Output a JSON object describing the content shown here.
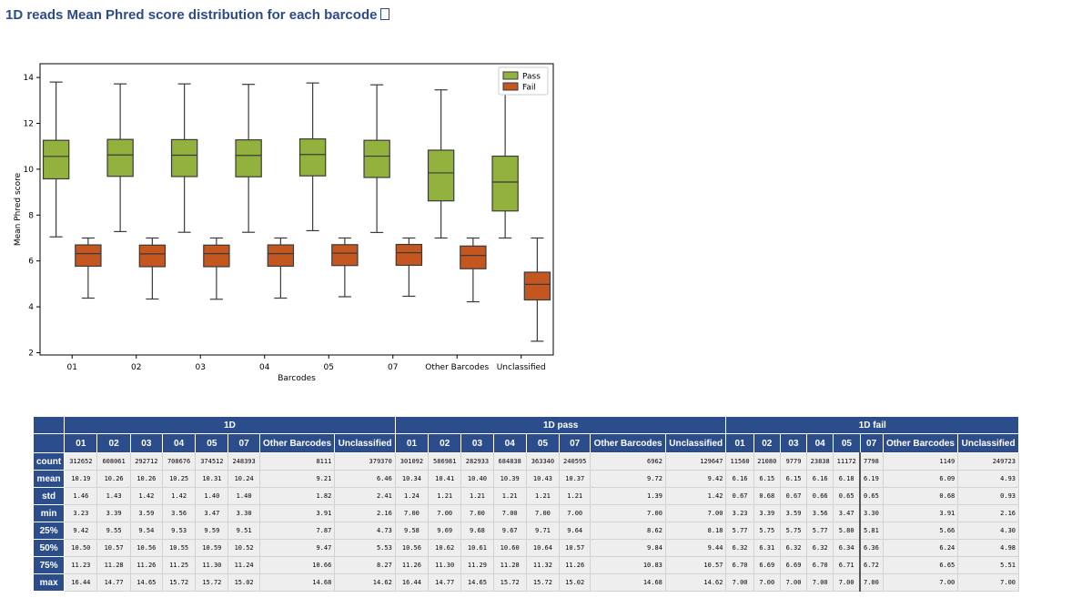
{
  "page": {
    "title": "1D reads Mean Phred score distribution for each barcode",
    "anchor_icon": "link-anchor-icon"
  },
  "chart_data": {
    "type": "box",
    "title": "",
    "xlabel": "Barcodes",
    "ylabel": "Mean Phred score",
    "ylim": [
      1.9,
      14.6
    ],
    "yticks": [
      2,
      4,
      6,
      8,
      10,
      12,
      14
    ],
    "categories": [
      "01",
      "02",
      "03",
      "04",
      "05",
      "07",
      "Other Barcodes",
      "Unclassified"
    ],
    "legend": {
      "position": "upper-right"
    },
    "series": [
      {
        "name": "Pass",
        "color": "#93b13d",
        "boxes": [
          {
            "whislo": 7.05,
            "q1": 9.58,
            "med": 10.56,
            "q3": 11.26,
            "whishi": 13.8
          },
          {
            "whislo": 7.28,
            "q1": 9.69,
            "med": 10.62,
            "q3": 11.3,
            "whishi": 13.72
          },
          {
            "whislo": 7.25,
            "q1": 9.68,
            "med": 10.61,
            "q3": 11.29,
            "whishi": 13.72
          },
          {
            "whislo": 7.25,
            "q1": 9.67,
            "med": 10.6,
            "q3": 11.28,
            "whishi": 13.7
          },
          {
            "whislo": 7.32,
            "q1": 9.71,
            "med": 10.64,
            "q3": 11.32,
            "whishi": 13.76
          },
          {
            "whislo": 7.24,
            "q1": 9.64,
            "med": 10.57,
            "q3": 11.26,
            "whishi": 13.68
          },
          {
            "whislo": 7.0,
            "q1": 8.62,
            "med": 9.84,
            "q3": 10.83,
            "whishi": 13.46
          },
          {
            "whislo": 7.0,
            "q1": 8.18,
            "med": 9.44,
            "q3": 10.57,
            "whishi": 13.85
          }
        ]
      },
      {
        "name": "Fail",
        "color": "#c4571f",
        "boxes": [
          {
            "whislo": 4.38,
            "q1": 5.77,
            "med": 6.32,
            "q3": 6.7,
            "whishi": 7.0
          },
          {
            "whislo": 4.34,
            "q1": 5.75,
            "med": 6.31,
            "q3": 6.69,
            "whishi": 7.0
          },
          {
            "whislo": 4.33,
            "q1": 5.75,
            "med": 6.32,
            "q3": 6.69,
            "whishi": 7.0
          },
          {
            "whislo": 4.38,
            "q1": 5.77,
            "med": 6.32,
            "q3": 6.7,
            "whishi": 7.0
          },
          {
            "whislo": 4.44,
            "q1": 5.8,
            "med": 6.34,
            "q3": 6.71,
            "whishi": 7.0
          },
          {
            "whislo": 4.46,
            "q1": 5.81,
            "med": 6.36,
            "q3": 6.72,
            "whishi": 7.0
          },
          {
            "whislo": 4.22,
            "q1": 5.66,
            "med": 6.24,
            "q3": 6.65,
            "whishi": 7.0
          },
          {
            "whislo": 2.5,
            "q1": 4.3,
            "med": 4.98,
            "q3": 5.51,
            "whishi": 7.0
          }
        ]
      }
    ]
  },
  "table": {
    "groups": [
      "1D",
      "1D pass",
      "1D fail"
    ],
    "columns": [
      "01",
      "02",
      "03",
      "04",
      "05",
      "07",
      "Other Barcodes",
      "Unclassified"
    ],
    "rows": [
      {
        "label": "count",
        "values": [
          "312652",
          "608061",
          "292712",
          "708676",
          "374512",
          "248393",
          "8111",
          "379370",
          "301092",
          "586981",
          "282933",
          "684838",
          "363340",
          "240595",
          "6962",
          "129647",
          "11560",
          "21080",
          "9779",
          "23838",
          "11172",
          "7798",
          "1149",
          "249723"
        ]
      },
      {
        "label": "mean",
        "values": [
          "10.19",
          "10.26",
          "10.26",
          "10.25",
          "10.31",
          "10.24",
          "9.21",
          "6.46",
          "10.34",
          "10.41",
          "10.40",
          "10.39",
          "10.43",
          "10.37",
          "9.72",
          "9.42",
          "6.16",
          "6.15",
          "6.15",
          "6.16",
          "6.18",
          "6.19",
          "6.09",
          "4.93"
        ]
      },
      {
        "label": "std",
        "values": [
          "1.46",
          "1.43",
          "1.42",
          "1.42",
          "1.40",
          "1.40",
          "1.82",
          "2.41",
          "1.24",
          "1.21",
          "1.21",
          "1.21",
          "1.21",
          "1.21",
          "1.39",
          "1.42",
          "0.67",
          "0.68",
          "0.67",
          "0.66",
          "0.65",
          "0.65",
          "0.68",
          "0.93"
        ]
      },
      {
        "label": "min",
        "values": [
          "3.23",
          "3.39",
          "3.59",
          "3.56",
          "3.47",
          "3.30",
          "3.91",
          "2.16",
          "7.00",
          "7.00",
          "7.00",
          "7.00",
          "7.00",
          "7.00",
          "7.00",
          "7.00",
          "3.23",
          "3.39",
          "3.59",
          "3.56",
          "3.47",
          "3.30",
          "3.91",
          "2.16"
        ]
      },
      {
        "label": "25%",
        "values": [
          "9.42",
          "9.55",
          "9.54",
          "9.53",
          "9.59",
          "9.51",
          "7.87",
          "4.73",
          "9.58",
          "9.69",
          "9.68",
          "9.67",
          "9.71",
          "9.64",
          "8.62",
          "8.18",
          "5.77",
          "5.75",
          "5.75",
          "5.77",
          "5.80",
          "5.81",
          "5.66",
          "4.30"
        ]
      },
      {
        "label": "50%",
        "values": [
          "10.50",
          "10.57",
          "10.56",
          "10.55",
          "10.59",
          "10.52",
          "9.47",
          "5.53",
          "10.56",
          "10.62",
          "10.61",
          "10.60",
          "10.64",
          "10.57",
          "9.84",
          "9.44",
          "6.32",
          "6.31",
          "6.32",
          "6.32",
          "6.34",
          "6.36",
          "6.24",
          "4.98"
        ]
      },
      {
        "label": "75%",
        "values": [
          "11.23",
          "11.28",
          "11.26",
          "11.25",
          "11.30",
          "11.24",
          "10.66",
          "8.27",
          "11.26",
          "11.30",
          "11.29",
          "11.28",
          "11.32",
          "11.26",
          "10.83",
          "10.57",
          "6.70",
          "6.69",
          "6.69",
          "6.70",
          "6.71",
          "6.72",
          "6.65",
          "5.51"
        ]
      },
      {
        "label": "max",
        "values": [
          "16.44",
          "14.77",
          "14.65",
          "15.72",
          "15.72",
          "15.02",
          "14.68",
          "14.62",
          "16.44",
          "14.77",
          "14.65",
          "15.72",
          "15.72",
          "15.02",
          "14.68",
          "14.62",
          "7.00",
          "7.00",
          "7.00",
          "7.00",
          "7.00",
          "7.00",
          "7.00",
          "7.00"
        ]
      }
    ]
  }
}
